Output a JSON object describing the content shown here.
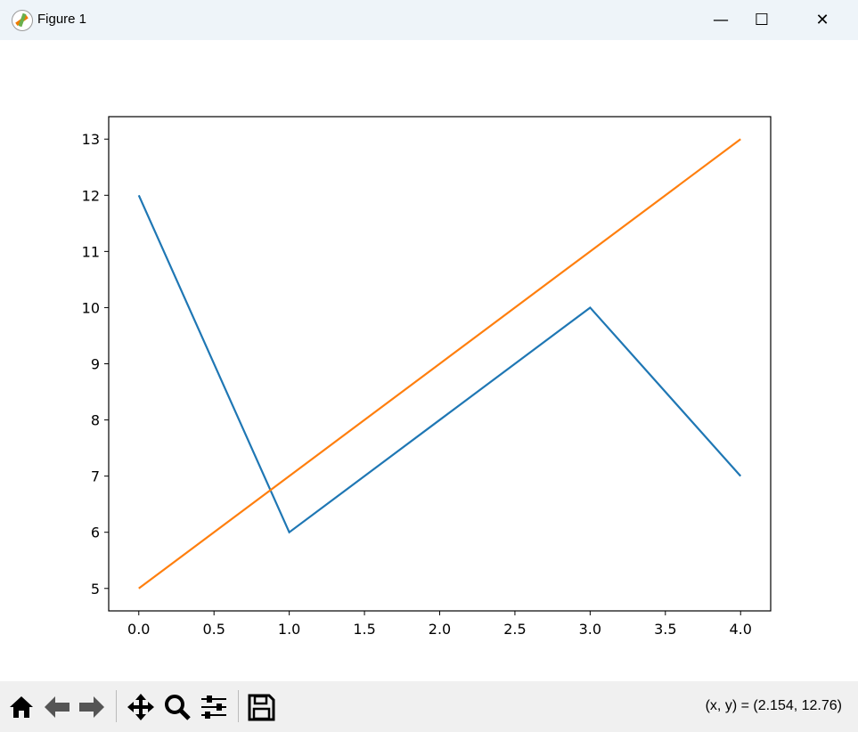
{
  "window": {
    "title": "Figure 1",
    "minimize": "—",
    "maximize": "☐",
    "close": "✕"
  },
  "toolbar": {
    "buttons": [
      "home-icon",
      "back-icon",
      "forward-icon",
      "pan-icon",
      "zoom-icon",
      "configure-subplots-icon",
      "save-icon"
    ],
    "coords": "(x, y) = (2.154, 12.76)"
  },
  "chart_data": {
    "type": "line",
    "x": [
      0,
      1,
      2,
      3,
      4
    ],
    "series": [
      {
        "values": [
          12,
          6,
          8,
          10,
          7
        ],
        "color": "#1f77b4"
      },
      {
        "values": [
          5,
          7,
          9,
          11,
          13
        ],
        "color": "#ff7f0e"
      }
    ],
    "xlim": [
      -0.2,
      4.2
    ],
    "ylim": [
      4.6,
      13.4
    ],
    "xticks": [
      "0.0",
      "0.5",
      "1.0",
      "1.5",
      "2.0",
      "2.5",
      "3.0",
      "3.5",
      "4.0"
    ],
    "yticks": [
      "5",
      "6",
      "7",
      "8",
      "9",
      "10",
      "11",
      "12",
      "13"
    ],
    "grid": false,
    "title": "",
    "xlabel": "",
    "ylabel": ""
  }
}
